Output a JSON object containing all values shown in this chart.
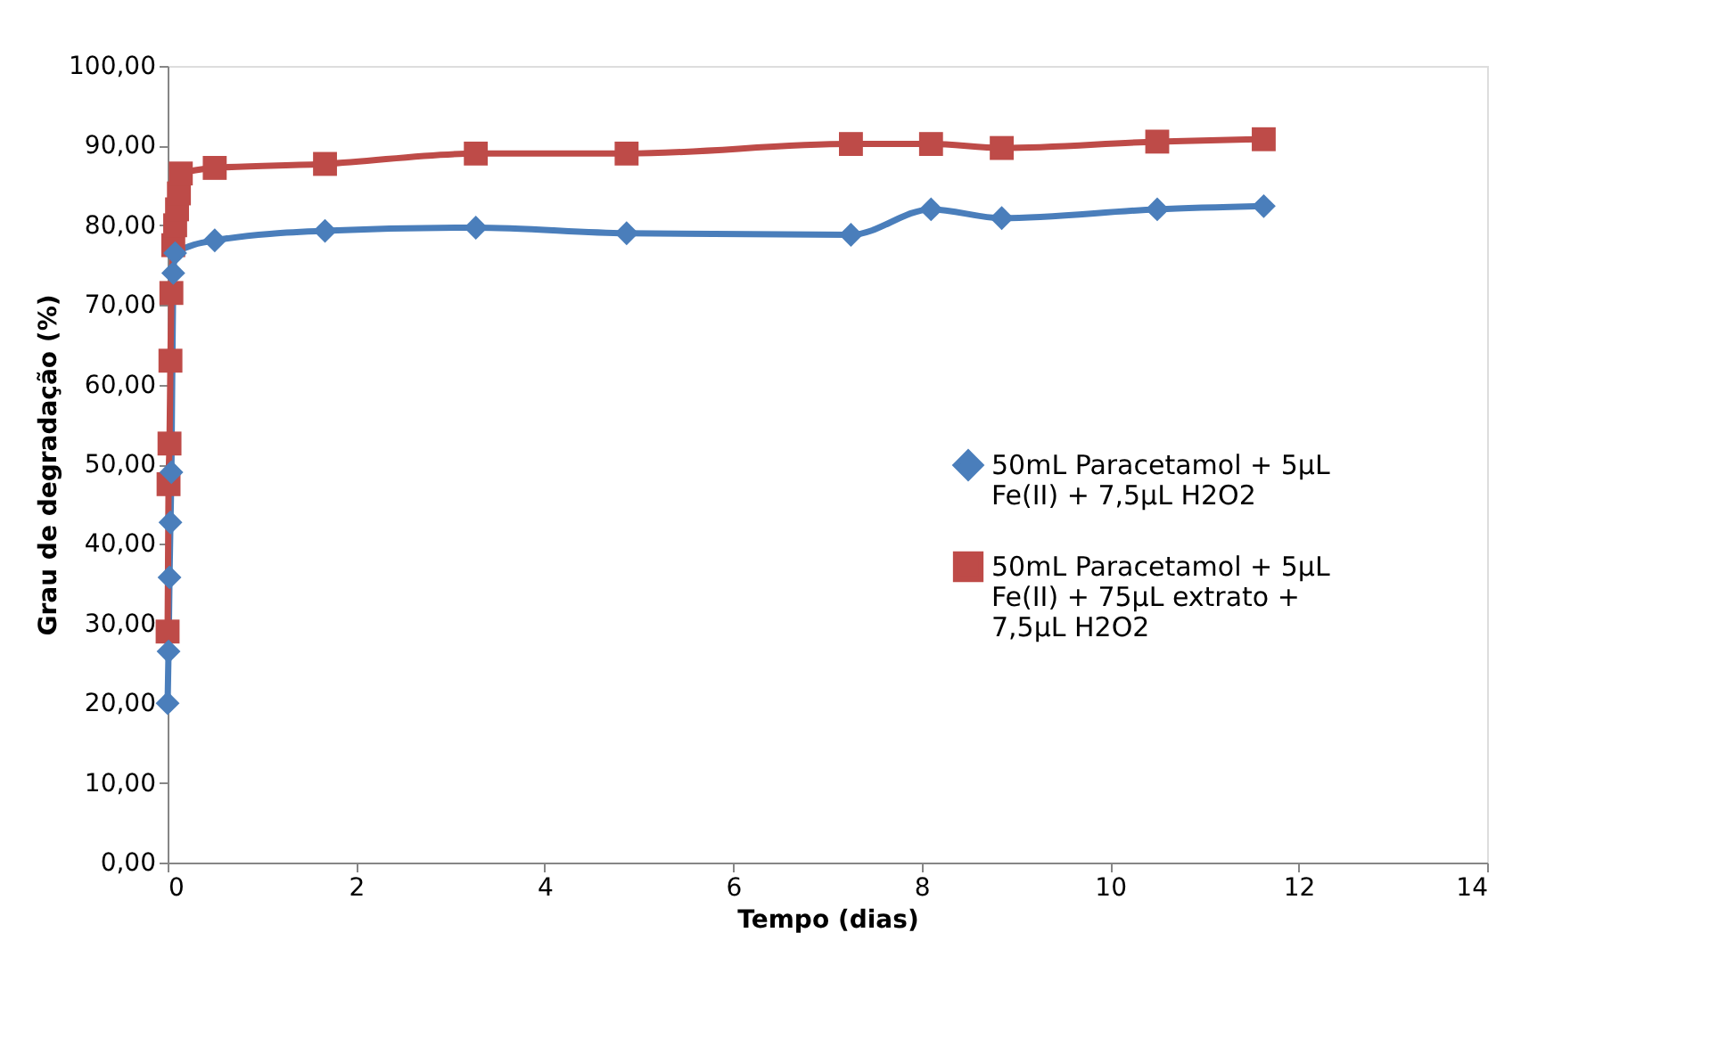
{
  "chart_data": {
    "type": "line",
    "xlabel": "Tempo (dias)",
    "ylabel": "Grau de degradação (%)",
    "xlim": [
      0,
      14
    ],
    "xticks": [
      0,
      2,
      4,
      6,
      8,
      10,
      12,
      14
    ],
    "ylim": [
      0,
      100
    ],
    "yticks": [
      {
        "value": 0,
        "label": "0,00"
      },
      {
        "value": 10,
        "label": "10,00"
      },
      {
        "value": 20,
        "label": "20,00"
      },
      {
        "value": 30,
        "label": "30,00"
      },
      {
        "value": 40,
        "label": "40,00"
      },
      {
        "value": 50,
        "label": "50,00"
      },
      {
        "value": 60,
        "label": "60,00"
      },
      {
        "value": 70,
        "label": "70,00"
      },
      {
        "value": 80,
        "label": "80,00"
      },
      {
        "value": 90,
        "label": "90,00"
      },
      {
        "value": 100,
        "label": "100,00"
      }
    ],
    "grid": false,
    "legend": "right",
    "line_style": "solid",
    "series": [
      {
        "name": "50mL Paracetamol + 5µL Fe(II) + 7,5µL H2O2",
        "color": "#4a7ebb",
        "marker": "diamond",
        "x": [
          0,
          0.01,
          0.02,
          0.03,
          0.04,
          0.06,
          0.08,
          0.5,
          1.67,
          3.27,
          4.87,
          7.25,
          8.1,
          8.85,
          10.5,
          11.63
        ],
        "values": [
          20,
          26.5,
          35.8,
          42.7,
          49,
          74,
          76.5,
          78.1,
          79.3,
          79.7,
          79,
          78.8,
          82,
          80.9,
          82,
          82.4
        ]
      },
      {
        "name": "50mL Paracetamol + 5µL Fe(II) + 75µL extrato + 7,5µL H2O2",
        "color": "#be4b48",
        "marker": "square",
        "x": [
          0,
          0.01,
          0.02,
          0.03,
          0.04,
          0.06,
          0.08,
          0.1,
          0.12,
          0.14,
          0.5,
          1.67,
          3.27,
          4.87,
          7.25,
          8.1,
          8.85,
          10.5,
          11.63
        ],
        "values": [
          29,
          47.5,
          52.6,
          63,
          71.5,
          77.5,
          80,
          82,
          84,
          86.5,
          87.2,
          87.7,
          89,
          89,
          90.2,
          90.2,
          89.7,
          90.5,
          90.8
        ]
      }
    ]
  }
}
